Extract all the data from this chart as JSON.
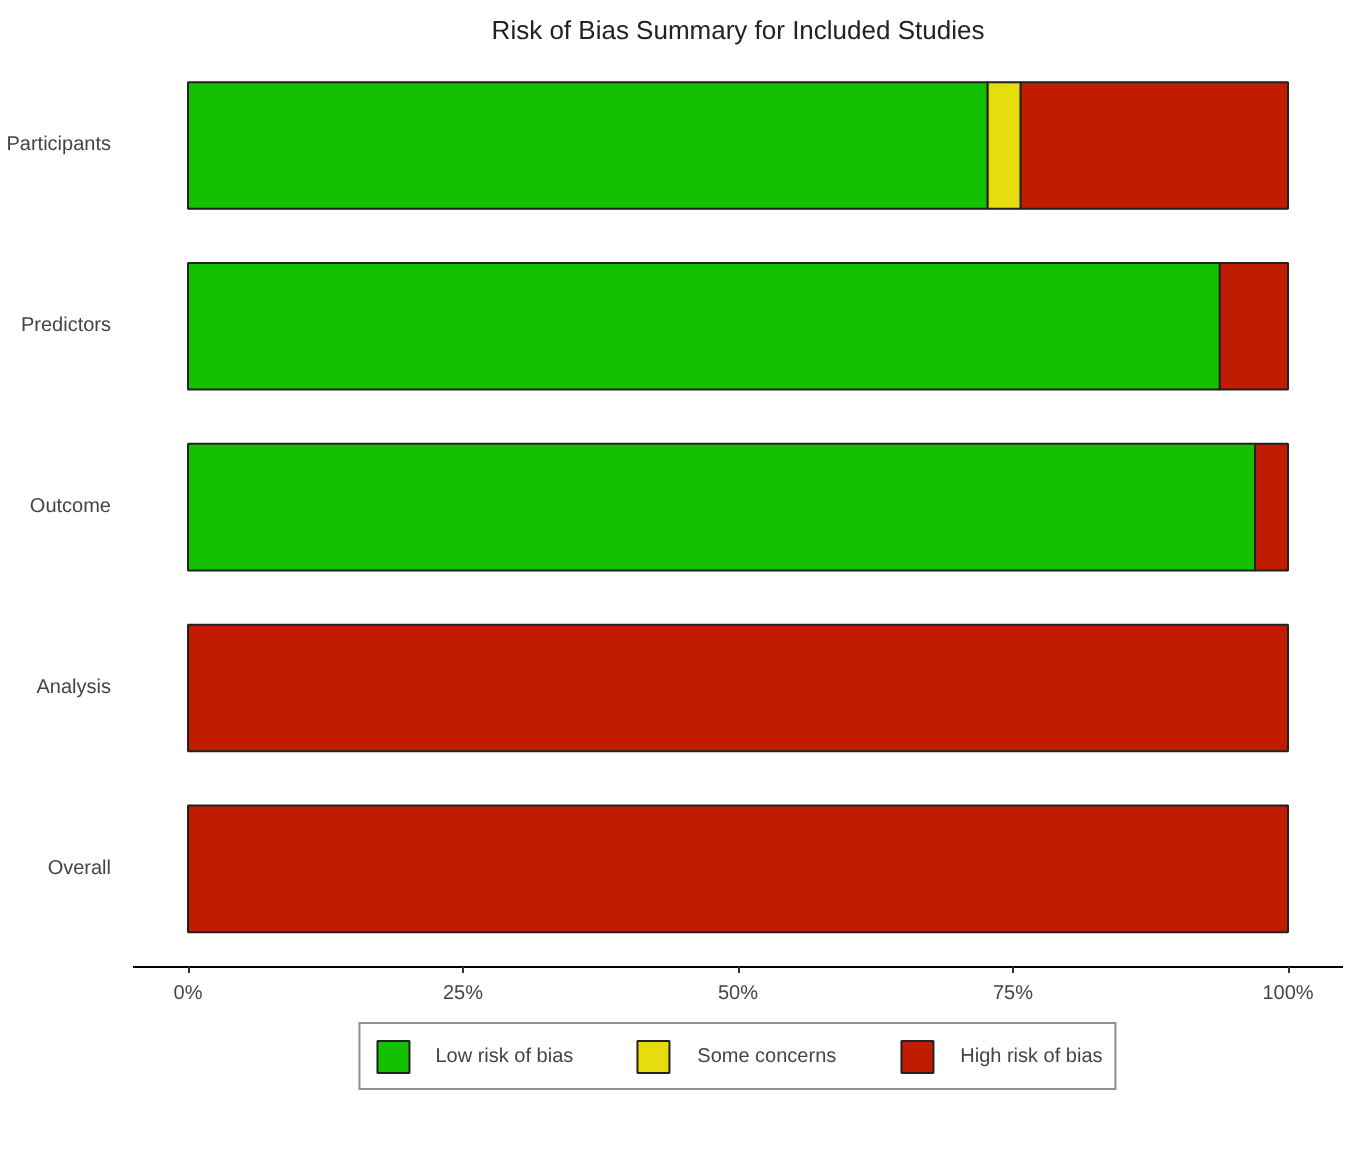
{
  "chart_data": {
    "type": "bar",
    "orientation": "horizontal",
    "stacked": true,
    "title": "Risk of Bias Summary for Included Studies",
    "categories": [
      "Participants",
      "Predictors",
      "Outcome",
      "Analysis",
      "Overall"
    ],
    "series": [
      {
        "name": "Low risk of bias",
        "color": "#13c100",
        "values": [
          72.7,
          93.8,
          97.0,
          0,
          0
        ]
      },
      {
        "name": "Some concerns",
        "color": "#e5dd0c",
        "values": [
          3.0,
          0,
          0,
          0,
          0
        ]
      },
      {
        "name": "High risk of bias",
        "color": "#c11b00",
        "values": [
          24.3,
          6.2,
          3.0,
          100,
          100
        ]
      }
    ],
    "xlim": [
      -5,
      105
    ],
    "xticks": [
      {
        "value": 0,
        "label": "0%"
      },
      {
        "value": 25,
        "label": "25%"
      },
      {
        "value": 50,
        "label": "50%"
      },
      {
        "value": 75,
        "label": "75%"
      },
      {
        "value": 100,
        "label": "100%"
      }
    ],
    "grid": false,
    "legend": "bottom"
  }
}
